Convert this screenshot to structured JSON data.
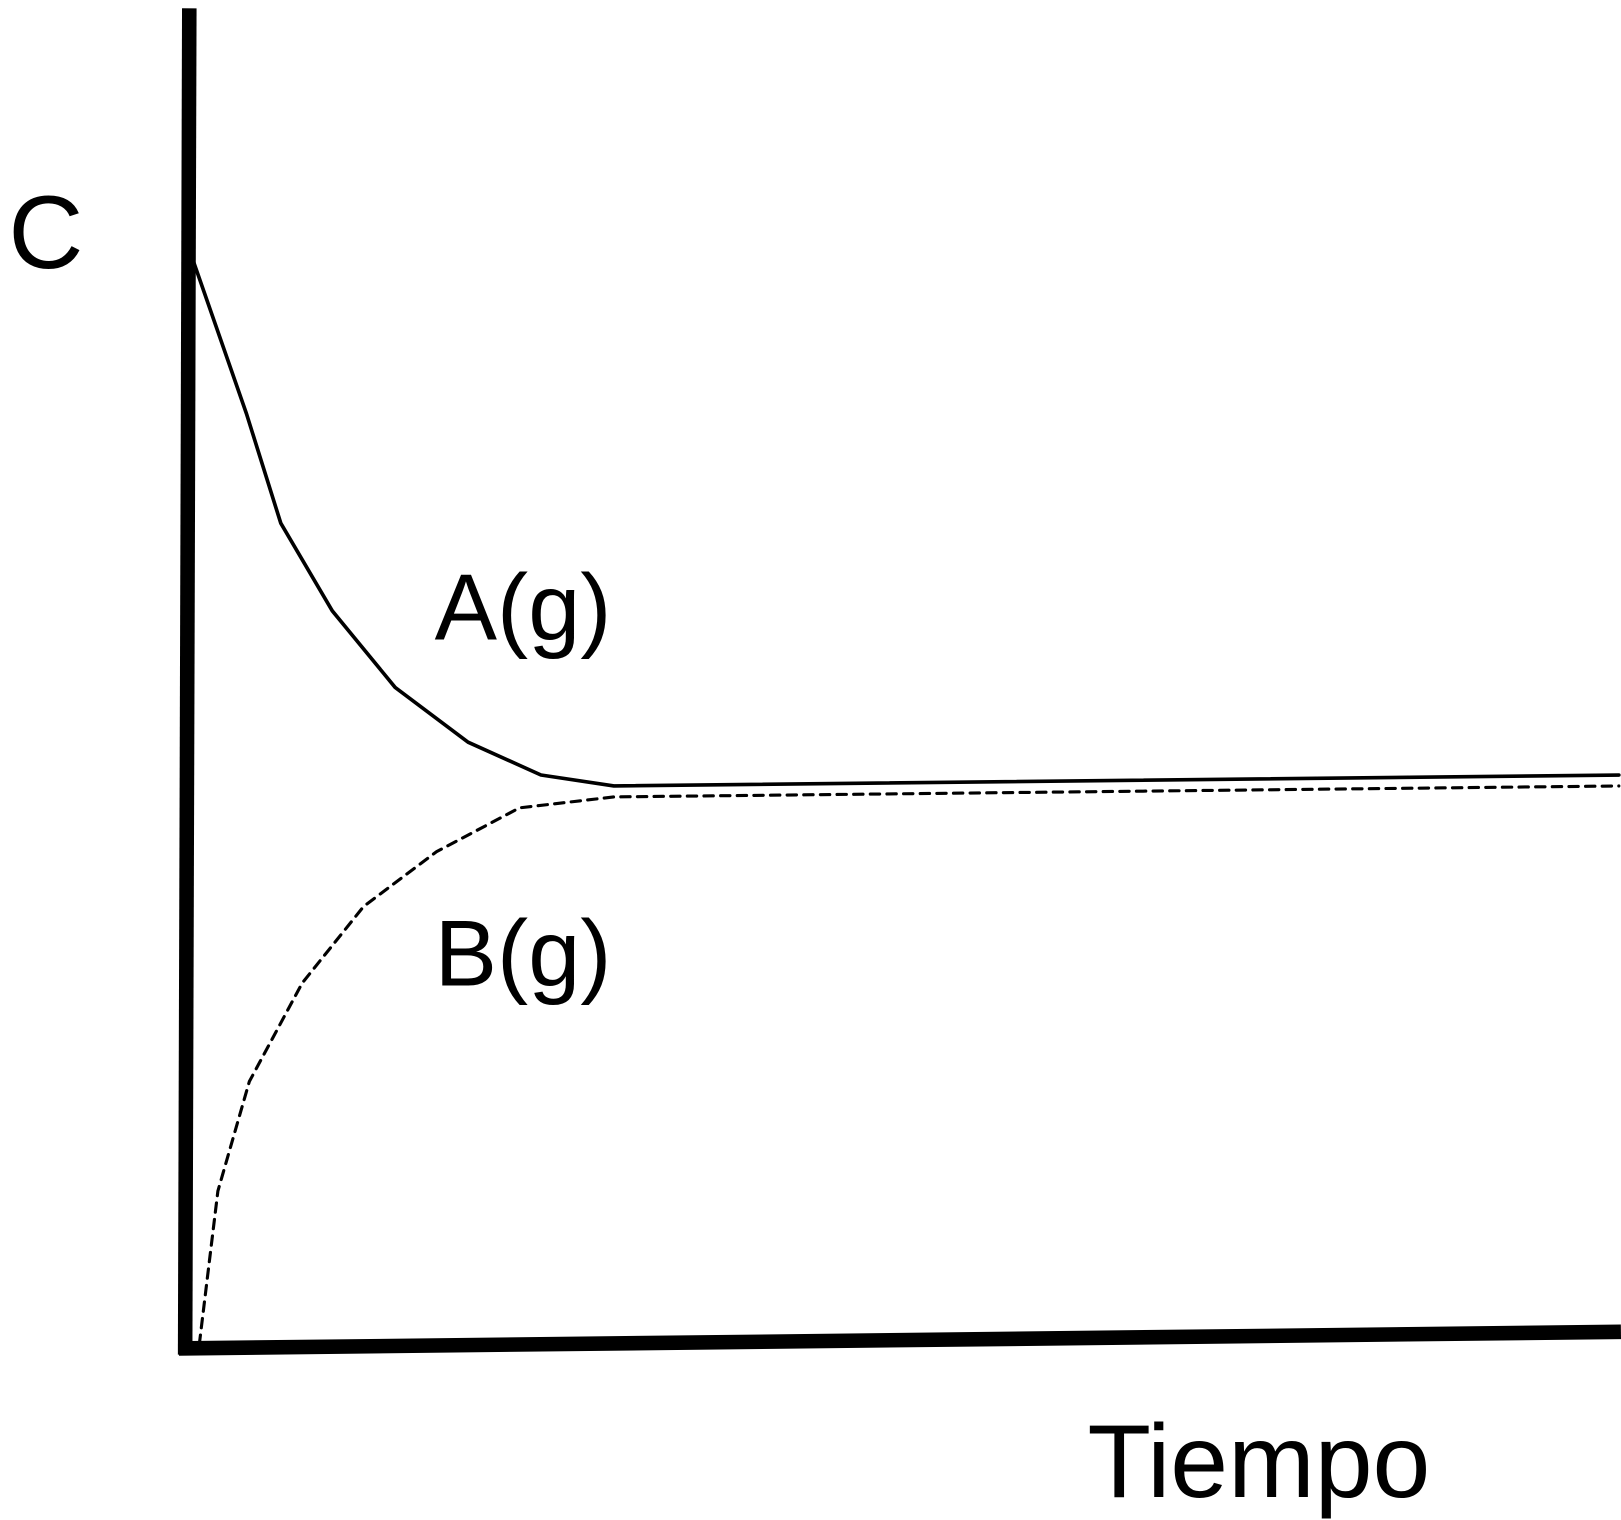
{
  "chart_data": {
    "type": "line",
    "y_label": "C",
    "x_label": "Tiempo",
    "xlim": [
      0,
      100
    ],
    "ylim": [
      0,
      100
    ],
    "series": [
      {
        "name": "A(g)",
        "color": "#000000",
        "style": "solid",
        "x": [
          0,
          4,
          6.4,
          10,
          14.4,
          19.5,
          24.6,
          29.7,
          100
        ],
        "values": [
          100,
          85,
          75,
          67,
          60,
          55,
          52,
          51,
          52
        ]
      },
      {
        "name": "B(g)",
        "color": "#000000",
        "style": "dashed",
        "x": [
          0.7,
          2,
          4.2,
          7.9,
          12.2,
          17.3,
          23.1,
          29.7,
          100
        ],
        "values": [
          0,
          14,
          24,
          33,
          40,
          45,
          49,
          50,
          51
        ]
      }
    ]
  }
}
